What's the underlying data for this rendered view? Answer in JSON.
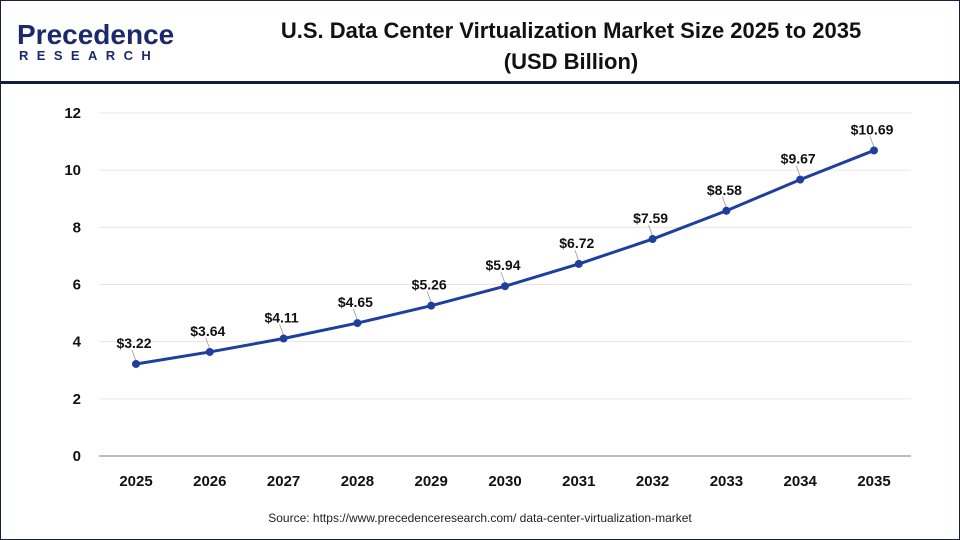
{
  "logo": {
    "line1": "Precedence",
    "line2": "RESEARCH"
  },
  "title_line1": "U.S. Data Center Virtualization Market Size 2025 to 2035",
  "title_line2": "(USD Billion)",
  "source": "Source: https://www.precedenceresearch.com/ data-center-virtualization-market",
  "colors": {
    "line": "#1f3f9e",
    "frame": "#151a40"
  },
  "chart_data": {
    "type": "line",
    "title": "U.S. Data Center Virtualization Market Size 2025 to 2035 (USD Billion)",
    "categories": [
      "2025",
      "2026",
      "2027",
      "2028",
      "2029",
      "2030",
      "2031",
      "2032",
      "2033",
      "2034",
      "2035"
    ],
    "values": [
      3.22,
      3.64,
      4.11,
      4.65,
      5.26,
      5.94,
      6.72,
      7.59,
      8.58,
      9.67,
      10.69
    ],
    "data_labels": [
      "$3.22",
      "$3.64",
      "$4.11",
      "$4.65",
      "$5.26",
      "$5.94",
      "$6.72",
      "$7.59",
      "$8.58",
      "$9.67",
      "$10.69"
    ],
    "ylim": [
      0,
      12
    ],
    "yticks": [
      0,
      2,
      4,
      6,
      8,
      10,
      12
    ],
    "grid": true,
    "legend": "none"
  }
}
